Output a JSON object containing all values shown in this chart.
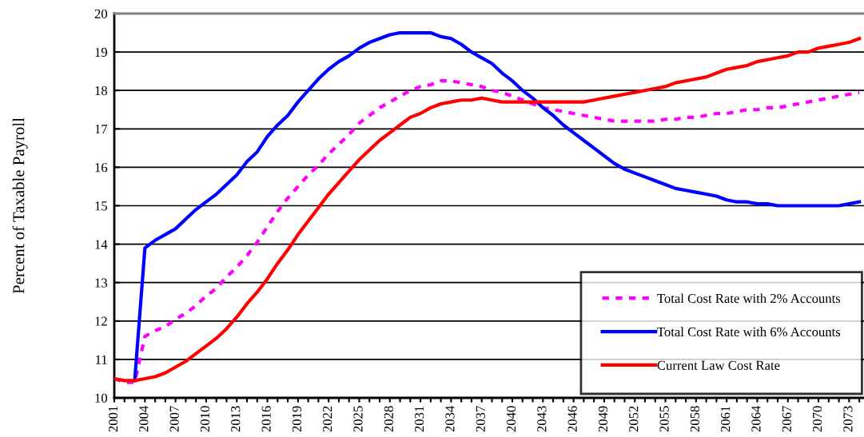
{
  "chart_data": {
    "type": "line",
    "ylabel": "Percent of Taxable Payroll",
    "categories": [
      "2001",
      null,
      null,
      "2004",
      null,
      null,
      "2007",
      null,
      null,
      "2010",
      null,
      null,
      "2013",
      null,
      null,
      "2016",
      null,
      null,
      "2019",
      null,
      null,
      "2022",
      null,
      null,
      "2025",
      null,
      null,
      "2028",
      null,
      null,
      "2031",
      null,
      null,
      "2034",
      null,
      null,
      "2037",
      null,
      null,
      "2040",
      null,
      null,
      "2043",
      null,
      null,
      "2046",
      null,
      null,
      "2049",
      null,
      null,
      "2052",
      null,
      null,
      "2055",
      null,
      null,
      "2058",
      null,
      null,
      "2061",
      null,
      null,
      "2064",
      null,
      null,
      "2067",
      null,
      null,
      "2070",
      null,
      null,
      "2073",
      null
    ],
    "series": [
      {
        "name": "Total Cost Rate with 2% Accounts",
        "color": "#ff00ff",
        "line_style": "dashed",
        "values": [
          10.5,
          10.4,
          10.4,
          11.6,
          11.75,
          11.85,
          12.05,
          12.2,
          12.4,
          12.65,
          12.85,
          13.15,
          13.4,
          13.7,
          14.05,
          14.45,
          14.85,
          15.2,
          15.5,
          15.8,
          16.05,
          16.35,
          16.6,
          16.85,
          17.15,
          17.35,
          17.55,
          17.7,
          17.85,
          18.0,
          18.1,
          18.15,
          18.25,
          18.25,
          18.2,
          18.15,
          18.1,
          18.0,
          17.95,
          17.85,
          17.75,
          17.65,
          17.55,
          17.5,
          17.45,
          17.4,
          17.35,
          17.3,
          17.25,
          17.2,
          17.2,
          17.2,
          17.2,
          17.2,
          17.25,
          17.25,
          17.3,
          17.3,
          17.35,
          17.4,
          17.4,
          17.45,
          17.5,
          17.5,
          17.55,
          17.55,
          17.6,
          17.65,
          17.7,
          17.75,
          17.8,
          17.85,
          17.9,
          17.95
        ]
      },
      {
        "name": "Total Cost Rate with 6% Accounts",
        "color": "#0000ff",
        "line_style": "solid",
        "values": [
          null,
          null,
          10.45,
          13.9,
          14.1,
          14.25,
          14.4,
          14.65,
          14.9,
          15.1,
          15.3,
          15.55,
          15.8,
          16.15,
          16.4,
          16.8,
          17.1,
          17.35,
          17.7,
          18.0,
          18.3,
          18.55,
          18.75,
          18.9,
          19.1,
          19.25,
          19.35,
          19.45,
          19.5,
          19.5,
          19.5,
          19.5,
          19.4,
          19.35,
          19.2,
          19.0,
          18.85,
          18.7,
          18.45,
          18.25,
          18.0,
          17.8,
          17.55,
          17.35,
          17.1,
          16.9,
          16.7,
          16.5,
          16.3,
          16.1,
          15.95,
          15.85,
          15.75,
          15.65,
          15.55,
          15.45,
          15.4,
          15.35,
          15.3,
          15.25,
          15.15,
          15.1,
          15.1,
          15.05,
          15.05,
          15.0,
          15.0,
          15.0,
          15.0,
          15.0,
          15.0,
          15.0,
          15.05,
          15.1
        ]
      },
      {
        "name": "Current Law Cost Rate",
        "color": "#ff0000",
        "line_style": "solid",
        "values": [
          10.5,
          10.45,
          10.45,
          10.5,
          10.55,
          10.65,
          10.8,
          10.95,
          11.15,
          11.35,
          11.55,
          11.8,
          12.1,
          12.45,
          12.75,
          13.1,
          13.5,
          13.85,
          14.25,
          14.6,
          14.95,
          15.3,
          15.6,
          15.9,
          16.2,
          16.45,
          16.7,
          16.9,
          17.1,
          17.3,
          17.4,
          17.55,
          17.65,
          17.7,
          17.75,
          17.75,
          17.8,
          17.75,
          17.7,
          17.7,
          17.7,
          17.7,
          17.7,
          17.7,
          17.7,
          17.7,
          17.7,
          17.75,
          17.8,
          17.85,
          17.9,
          17.95,
          18.0,
          18.05,
          18.1,
          18.2,
          18.25,
          18.3,
          18.35,
          18.45,
          18.55,
          18.6,
          18.65,
          18.75,
          18.8,
          18.85,
          18.9,
          19.0,
          19.0,
          19.1,
          19.15,
          19.2,
          19.25,
          19.35
        ]
      }
    ],
    "ylim": [
      10,
      20
    ],
    "yticks": [
      10,
      11,
      12,
      13,
      14,
      15,
      16,
      17,
      18,
      19,
      20
    ],
    "grid": "y",
    "legend": "bottom right",
    "marker": "none"
  }
}
